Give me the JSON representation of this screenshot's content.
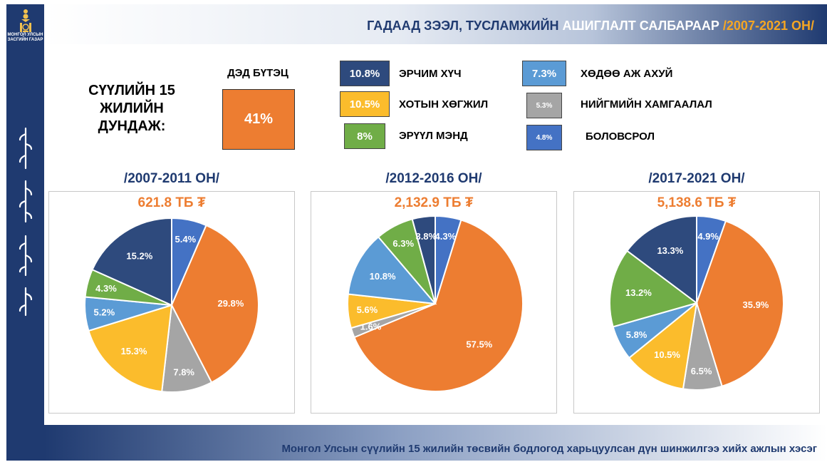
{
  "header": {
    "title_part1": "ГАДААД ЗЭЭЛ, ТУСЛАМЖИЙН",
    "title_part2": "АШИГЛАЛТ САЛБАРААР",
    "title_part3": "/2007-2021 ОН/"
  },
  "logo": {
    "text": "МОНГОЛ УЛСЫН ЗАСГИЙН ГАЗАР"
  },
  "footer": {
    "text": "Монгол Улсын сүүлийн 15 жилийн төсвийн бодлогод харьцуулсан дүн шинжилгээ хийх ажлын хэсэг"
  },
  "summary": {
    "avg_label": "СҮҮЛИЙН 15 ЖИЛИЙН ДУНДАЖ:",
    "ded_label": "ДЭД БҮТЭЦ",
    "ded_value": "41%"
  },
  "legend": [
    {
      "value": "10.8%",
      "label": "ЭРЧИМ ХҮЧ",
      "color": "#2e4a7d"
    },
    {
      "value": "10.5%",
      "label": "ХОТЫН ХӨГЖИЛ",
      "color": "#fbbc2c"
    },
    {
      "value": "8%",
      "label": "ЭРҮҮЛ МЭНД",
      "color": "#70ad47"
    },
    {
      "value": "7.3%",
      "label": "ХӨДӨӨ АЖ АХУЙ",
      "color": "#5b9bd5"
    },
    {
      "value": "5.3%",
      "label": "НИЙГМИЙН ХАМГААЛАЛ",
      "color": "#a5a5a5"
    },
    {
      "value": "4.8%",
      "label": "БОЛОВСРОЛ",
      "color": "#4472c4"
    }
  ],
  "chart_data": [
    {
      "type": "pie",
      "title": "/2007-2011 ОН/",
      "subtitle": "621.8 ТБ ₮",
      "slices": [
        {
          "value": 5.4,
          "label": "5.4%",
          "color": "#4472c4"
        },
        {
          "value": 29.8,
          "label": "29.8%",
          "color": "#ed7d31"
        },
        {
          "value": 7.8,
          "label": "7.8%",
          "color": "#a5a5a5"
        },
        {
          "value": 15.3,
          "label": "15.3%",
          "color": "#fbbc2c"
        },
        {
          "value": 5.2,
          "label": "5.2%",
          "color": "#5b9bd5"
        },
        {
          "value": 4.3,
          "label": "4.3%",
          "color": "#70ad47"
        },
        {
          "value": 15.2,
          "label": "15.2%",
          "color": "#2e4a7d"
        }
      ]
    },
    {
      "type": "pie",
      "title": "/2012-2016 ОН/",
      "subtitle": "2,132.9 ТБ ₮",
      "slices": [
        {
          "value": 4.3,
          "label": "4.3%",
          "color": "#4472c4"
        },
        {
          "value": 57.5,
          "label": "57.5%",
          "color": "#ed7d31"
        },
        {
          "value": 1.6,
          "label": "1.6%",
          "color": "#a5a5a5"
        },
        {
          "value": 5.6,
          "label": "5.6%",
          "color": "#fbbc2c"
        },
        {
          "value": 10.8,
          "label": "10.8%",
          "color": "#5b9bd5"
        },
        {
          "value": 6.3,
          "label": "6.3%",
          "color": "#70ad47"
        },
        {
          "value": 3.8,
          "label": "3.8%",
          "color": "#2e4a7d"
        }
      ]
    },
    {
      "type": "pie",
      "title": "/2017-2021 ОН/",
      "subtitle": "5,138.6 ТБ ₮",
      "slices": [
        {
          "value": 4.9,
          "label": "4.9%",
          "color": "#4472c4"
        },
        {
          "value": 35.9,
          "label": "35.9%",
          "color": "#ed7d31"
        },
        {
          "value": 6.5,
          "label": "6.5%",
          "color": "#a5a5a5"
        },
        {
          "value": 10.5,
          "label": "10.5%",
          "color": "#fbbc2c"
        },
        {
          "value": 5.8,
          "label": "5.8%",
          "color": "#5b9bd5"
        },
        {
          "value": 13.2,
          "label": "13.2%",
          "color": "#70ad47"
        },
        {
          "value": 13.3,
          "label": "13.3%",
          "color": "#2e4a7d"
        }
      ]
    }
  ]
}
